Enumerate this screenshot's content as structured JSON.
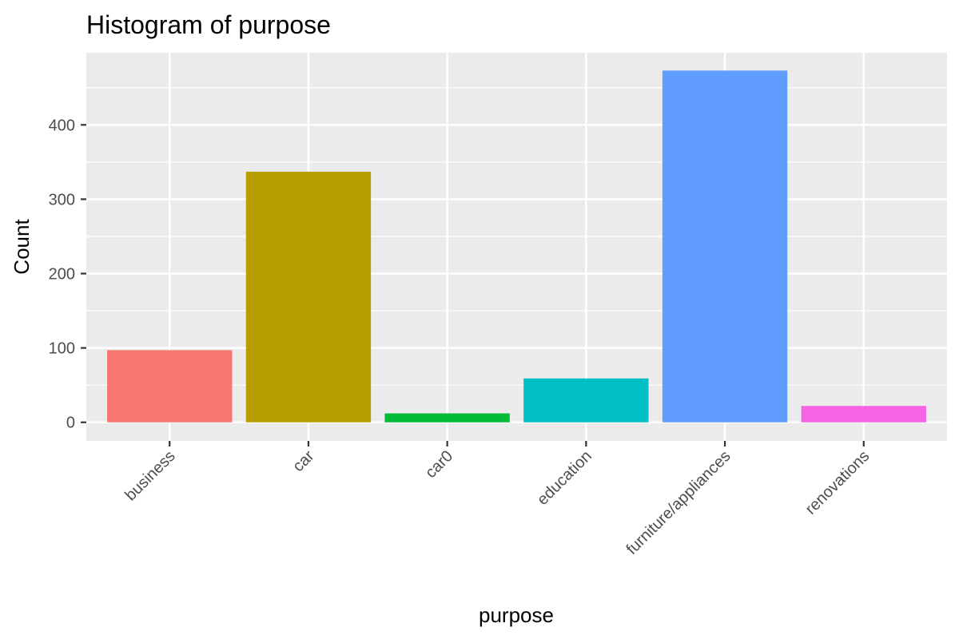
{
  "chart_data": {
    "type": "bar",
    "title": "Histogram of purpose",
    "xlabel": "purpose",
    "ylabel": "Count",
    "categories": [
      "business",
      "car",
      "car0",
      "education",
      "furniture/appliances",
      "renovations"
    ],
    "values": [
      97,
      337,
      12,
      59,
      473,
      22
    ],
    "colors": [
      "#F8766D",
      "#B79F00",
      "#00BA38",
      "#00BFC4",
      "#619CFF",
      "#F564E3"
    ],
    "ylim": [
      -25,
      497
    ],
    "yticks": [
      0,
      100,
      200,
      300,
      400
    ],
    "grid": true,
    "legend": "none",
    "panel_background": "#EBEBEB",
    "grid_color": "#FFFFFF"
  }
}
